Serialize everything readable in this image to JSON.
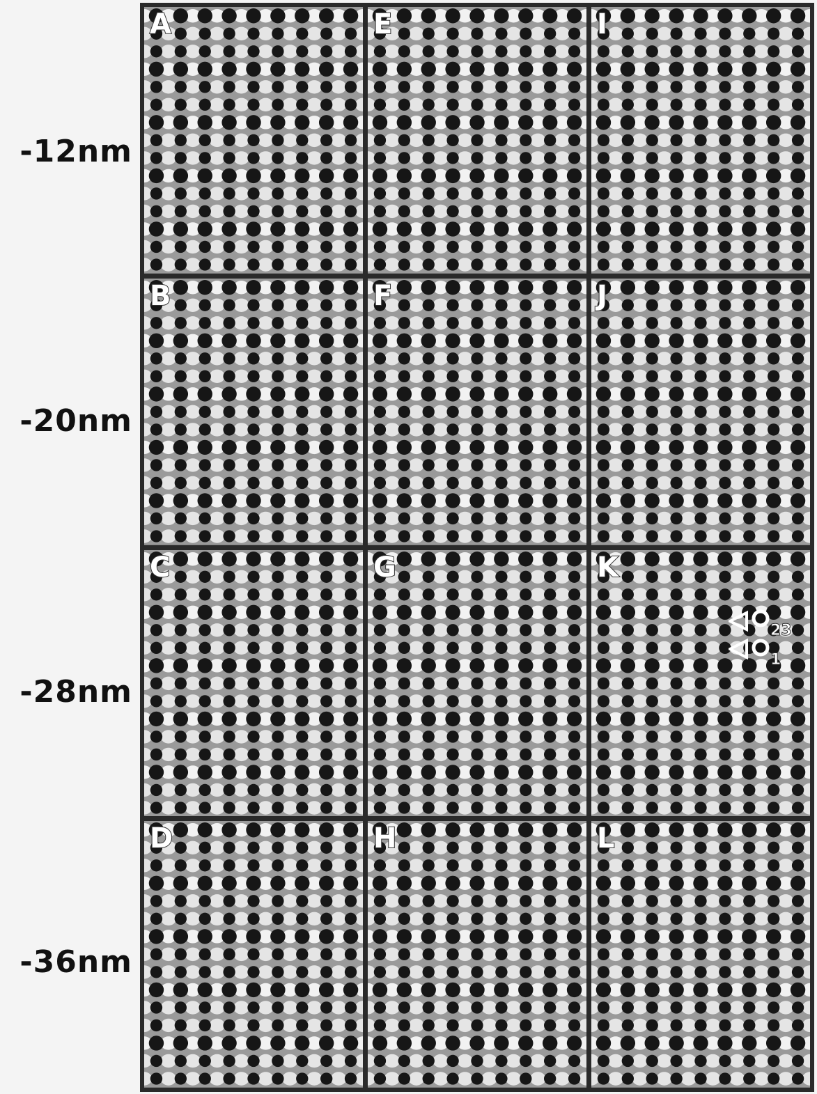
{
  "rows": [
    "-12nm",
    "-20nm",
    "-28nm",
    "-36nm"
  ],
  "panels": [
    [
      "A",
      "E",
      "I"
    ],
    [
      "B",
      "F",
      "J"
    ],
    [
      "C",
      "G",
      "K"
    ],
    [
      "D",
      "H",
      "L"
    ]
  ],
  "site_labels": {
    "upper": "23",
    "lower": "1"
  },
  "colors": {
    "frame": "#2a2a2a",
    "background": "#f4f4f4",
    "dot": "#161616",
    "bright": "#f7f7f7"
  }
}
